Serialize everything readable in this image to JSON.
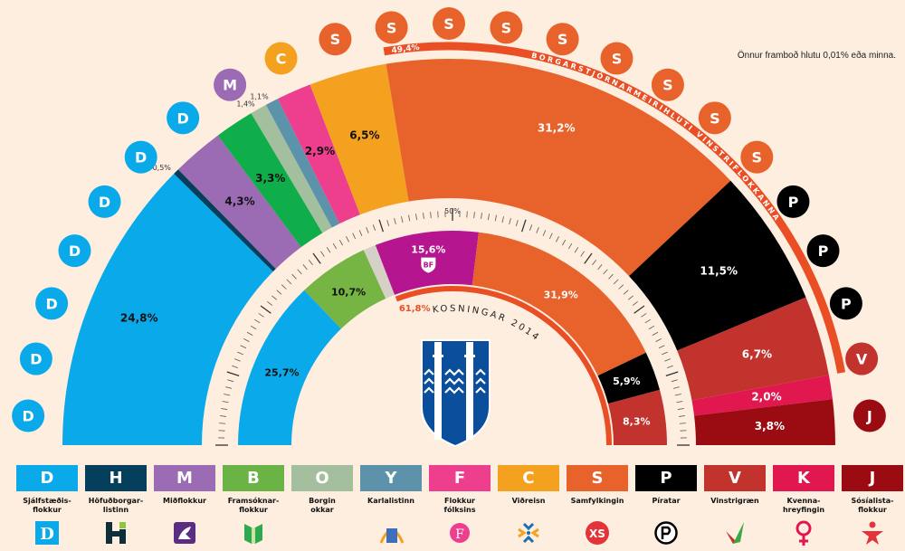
{
  "note": "Önnur framboð hlutu 0,01% eða minna.",
  "chart_data": [
    {
      "type": "pie",
      "shape": "half-donut",
      "categories": [
        "D",
        "H",
        "M",
        "B",
        "O",
        "Y",
        "F",
        "C",
        "S",
        "P",
        "V",
        "K",
        "J"
      ],
      "values": [
        24.8,
        0.5,
        4.3,
        3.3,
        1.4,
        1.1,
        2.9,
        6.5,
        31.2,
        11.5,
        6.7,
        2.0,
        3.8
      ],
      "labels": [
        "24,8%",
        "0,5%",
        "4,3%",
        "3,3%",
        "1,4%",
        "1,1%",
        "2,9%",
        "6,5%",
        "31,2%",
        "11,5%",
        "6,7%",
        "2,0%",
        "3,8%"
      ],
      "colors": [
        "#0aa9e9",
        "#063f5c",
        "#9b6bb3",
        "#0fae4a",
        "#a3bf9d",
        "#5c93aa",
        "#ee3e8e",
        "#f4a11f",
        "#e8632b",
        "#000000",
        "#c2332e",
        "#e1174f",
        "#9b0c12"
      ],
      "majority": {
        "value_label": "49,4%",
        "label": "BORGARSTJÓRNARMEIRIHLUTI VINSTRIFLOKKANNA",
        "parties": [
          "S",
          "P",
          "V"
        ]
      },
      "seats": [
        "D",
        "D",
        "D",
        "D",
        "D",
        "D",
        "D",
        "M",
        "C",
        "S",
        "S",
        "S",
        "S",
        "S",
        "S",
        "S",
        "S",
        "S",
        "P",
        "P",
        "P",
        "V",
        "J"
      ]
    },
    {
      "type": "pie",
      "shape": "half-donut",
      "title": "KOSNINGAR 2014",
      "categories": [
        "D",
        "B",
        "",
        "BF",
        "S",
        "P",
        "V"
      ],
      "values": [
        25.7,
        10.7,
        1.9,
        15.6,
        31.9,
        5.9,
        8.3
      ],
      "labels": [
        "25,7%",
        "10,7%",
        "",
        "15,6%",
        "31,9%",
        "5,9%",
        "8,3%"
      ],
      "colors": [
        "#0aa9e9",
        "#76b443",
        "#d6d1c6",
        "#b5168f",
        "#e8632b",
        "#000000",
        "#c2332e"
      ],
      "bloc": {
        "value_label": "61,8%",
        "parties": [
          "BF",
          "S",
          "P",
          "V"
        ]
      },
      "scale_label": "50%"
    }
  ],
  "accent": "#e94e24",
  "legend": [
    {
      "letter": "D",
      "name": "Sjálfstæðis-\nflokkur",
      "color": "#0aa9e9",
      "logo": "d-logo-icon"
    },
    {
      "letter": "H",
      "name": "Höfuðborgar-\nlistinn",
      "color": "#063f5c",
      "logo": "h-logo-icon"
    },
    {
      "letter": "M",
      "name": "Miðflokkur",
      "color": "#9b6bb3",
      "logo": "horse-logo-icon"
    },
    {
      "letter": "B",
      "name": "Framsóknar-\nflokkur",
      "color": "#6ab344",
      "logo": "book-logo-icon"
    },
    {
      "letter": "O",
      "name": "Borgin\nokkar",
      "color": "#a3bf9d",
      "logo": ""
    },
    {
      "letter": "Y",
      "name": "Karlalistinn",
      "color": "#5c93aa",
      "logo": "rainbow-logo-icon"
    },
    {
      "letter": "F",
      "name": "Flokkur\nfólksins",
      "color": "#ee3e8e",
      "logo": "f-splash-logo-icon"
    },
    {
      "letter": "C",
      "name": "Viðreisn",
      "color": "#f4a11f",
      "logo": "star-burst-logo-icon"
    },
    {
      "letter": "S",
      "name": "Samfylkingin",
      "color": "#e8632b",
      "logo": "xs-logo-icon"
    },
    {
      "letter": "P",
      "name": "Píratar",
      "color": "#000000",
      "logo": "pirate-flag-logo-icon"
    },
    {
      "letter": "V",
      "name": "Vinstrigræn",
      "color": "#c2332e",
      "logo": "check-logo-icon"
    },
    {
      "letter": "K",
      "name": "Kvenna-\nhreyfingin",
      "color": "#e1174f",
      "logo": "venus-logo-icon"
    },
    {
      "letter": "J",
      "name": "Sósíalista-\nflokkur",
      "color": "#9b0c12",
      "logo": "person-star-logo-icon"
    }
  ],
  "logo_texts": {
    "D": "D",
    "H": "H",
    "S": "XS",
    "BF": "BF",
    "F": "F"
  }
}
